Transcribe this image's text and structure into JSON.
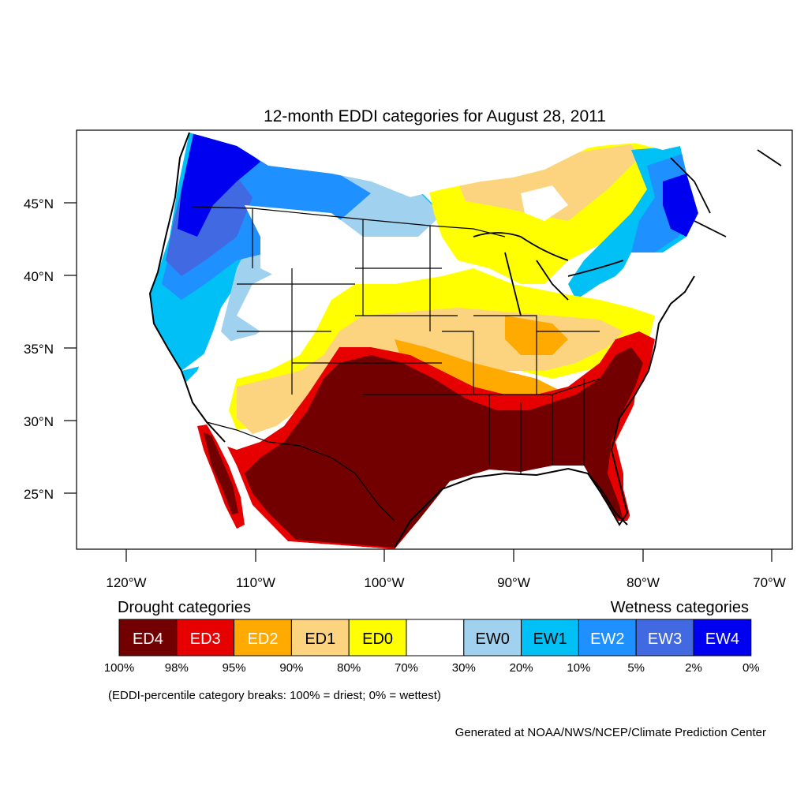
{
  "title": "12-month EDDI categories for August 28, 2011",
  "lat_labels": [
    "45°N",
    "40°N",
    "35°N",
    "30°N",
    "25°N"
  ],
  "lon_labels": [
    "120°W",
    "110°W",
    "100°W",
    "90°W",
    "80°W",
    "70°W"
  ],
  "legend": {
    "drought_heading": "Drought categories",
    "wetness_heading": "Wetness categories",
    "categories": [
      {
        "label": "ED4",
        "color": "#730000"
      },
      {
        "label": "ED3",
        "color": "#e60000"
      },
      {
        "label": "ED2",
        "color": "#ffaa00"
      },
      {
        "label": "ED1",
        "color": "#fcd37f"
      },
      {
        "label": "ED0",
        "color": "#ffff00"
      },
      {
        "label": "",
        "color": "#ffffff"
      },
      {
        "label": "EW0",
        "color": "#a0d2f0"
      },
      {
        "label": "EW1",
        "color": "#00c0f5"
      },
      {
        "label": "EW2",
        "color": "#1e90ff"
      },
      {
        "label": "EW3",
        "color": "#4169e1"
      },
      {
        "label": "EW4",
        "color": "#0000f0"
      }
    ],
    "breaks": [
      "100%",
      "98%",
      "95%",
      "90%",
      "80%",
      "70%",
      "30%",
      "20%",
      "10%",
      "5%",
      "2%",
      "0%"
    ],
    "note": "(EDDI-percentile category breaks: 100% = driest; 0% = wettest)"
  },
  "credit": "Generated at NOAA/NWS/NCEP/Climate Prediction Center"
}
